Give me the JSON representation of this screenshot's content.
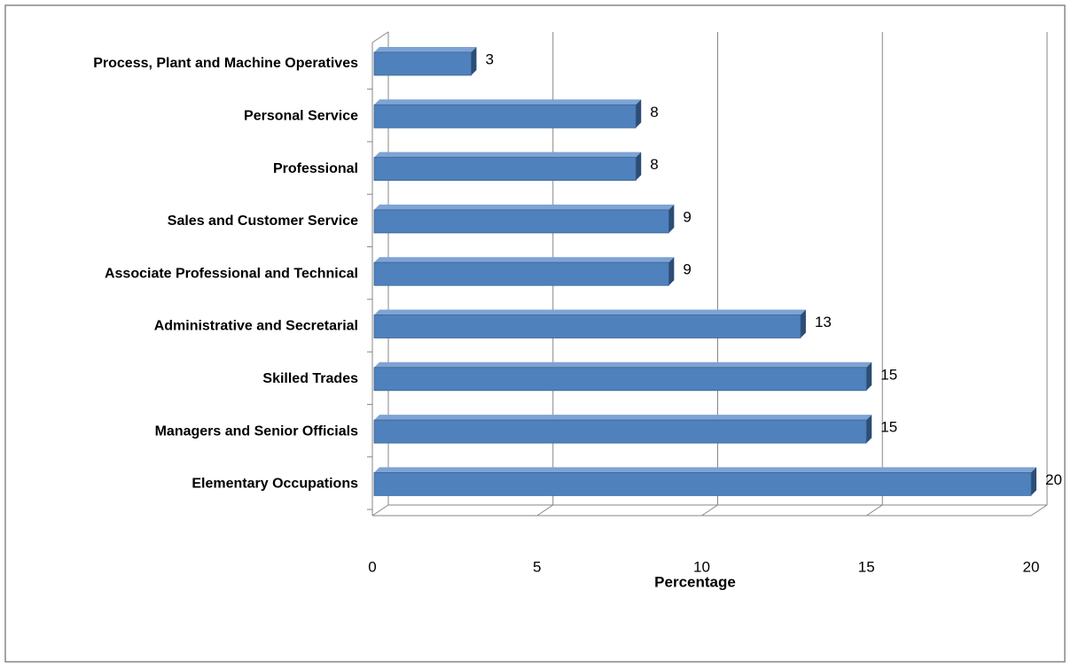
{
  "chart_data": {
    "type": "bar",
    "orientation": "horizontal",
    "x_label": "Percentage",
    "categories": [
      "Process, Plant and Machine Operatives",
      "Personal Service",
      "Professional",
      "Sales and Customer Service",
      "Associate Professional and Technical",
      "Administrative and Secretarial",
      "Skilled Trades",
      "Managers and Senior Officials",
      "Elementary Occupations"
    ],
    "values": [
      3,
      8,
      8,
      9,
      9,
      13,
      15,
      15,
      20
    ],
    "color": "#4f81bd",
    "xlim": [
      0,
      20
    ],
    "xticks": [
      0,
      5,
      10,
      15,
      20
    ],
    "grid": true
  }
}
